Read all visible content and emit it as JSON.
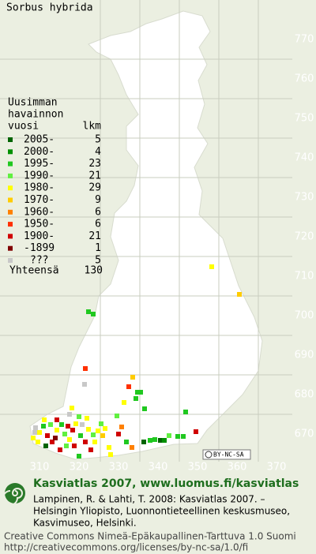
{
  "title": "Sorbus hybrida",
  "legend": {
    "header": [
      "Uusimman",
      "havainnon",
      "vuosi"
    ],
    "count_header": "lkm",
    "rows": [
      {
        "label": "2005-",
        "count": 5,
        "color": "#006400"
      },
      {
        "label": "2000-",
        "count": 4,
        "color": "#009000"
      },
      {
        "label": "1995-",
        "count": 23,
        "color": "#20c820"
      },
      {
        "label": "1990-",
        "count": 21,
        "color": "#60f040"
      },
      {
        "label": "1980-",
        "count": 29,
        "color": "#ffff00"
      },
      {
        "label": "1970-",
        "count": 9,
        "color": "#ffcc00"
      },
      {
        "label": "1960-",
        "count": 6,
        "color": "#ff8000"
      },
      {
        "label": "1950-",
        "count": 6,
        "color": "#ff3000"
      },
      {
        "label": "1900-",
        "count": 21,
        "color": "#d00000"
      },
      {
        "label": "-1899",
        "count": 1,
        "color": "#800000"
      },
      {
        "label": "???",
        "count": 5,
        "color": "#c8c8c8"
      }
    ],
    "total_label": "Yhteensä",
    "total": 130
  },
  "grid": {
    "x_labels": [
      "310",
      "320",
      "330",
      "340",
      "350",
      "360",
      "370"
    ],
    "y_labels": [
      "770",
      "760",
      "750",
      "740",
      "730",
      "720",
      "710",
      "700",
      "690",
      "680",
      "670"
    ]
  },
  "license_badge": "BY-NC-SA",
  "footer": {
    "title": "Kasviatlas 2007, www.luomus.fi/kasviatlas",
    "citation": [
      "Lampinen, R. & Lahti, T. 2008: Kasviatlas 2007. –",
      "Helsingin Yliopisto, Luonnontieteellinen keskusmuseo,",
      "Kasvimuseo, Helsinki."
    ],
    "license": [
      "Creative Commons Nimeä-Epäkaupallinen-Tarttuva 1.0 Suomi",
      "http://creativecommons.org/licenses/by-nc-sa/1.0/fi"
    ]
  }
}
